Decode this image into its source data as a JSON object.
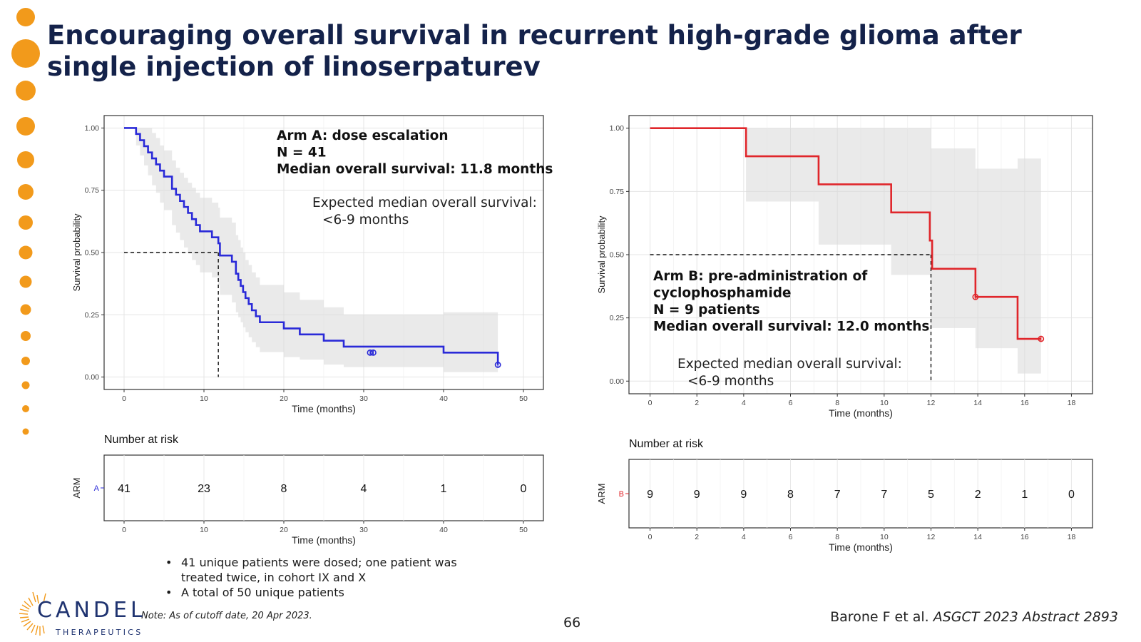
{
  "slide": {
    "title": "Encouraging overall survival in recurrent high-grade glioma after single injection of linoserpaturev",
    "page_number": "66",
    "citation_authors": "Barone F et al. ",
    "citation_source": "ASGCT 2023 Abstract 2893",
    "note": "Note: As of cutoff date, 20 Apr 2023.",
    "bullets": [
      "41 unique patients were dosed; one patient was treated twice, in cohort IX and X",
      "A total of 50 unique patients"
    ],
    "logo": {
      "name": "CANDEL",
      "subtitle": "THERAPEUTICS"
    },
    "colors": {
      "title": "#14224a",
      "dots": "#f29a1b",
      "logo": "#1f3370"
    }
  },
  "chart_data": [
    {
      "type": "line",
      "subtype": "kaplan-meier",
      "xlabel": "Time (months)",
      "ylabel": "Survival probability",
      "xlim": [
        -2.5,
        52.5
      ],
      "ylim": [
        -0.05,
        1.05
      ],
      "xticks": [
        0,
        10,
        20,
        30,
        40,
        50
      ],
      "yticks": [
        0,
        0.25,
        0.5,
        0.75,
        1
      ],
      "ytick_labels": [
        "0.00",
        "0.25",
        "0.50",
        "0.75",
        "1.00"
      ],
      "grid": true,
      "color": "#2a2ad8",
      "annotations": {
        "bold": [
          "Arm A: dose escalation",
          "N = 41",
          "Median overall survival: 11.8 months"
        ],
        "regular": [
          "Expected median overall survival:",
          "<6-9 months"
        ]
      },
      "median": {
        "x": 11.8,
        "y": 0.5
      },
      "series": [
        {
          "x": [
            0,
            1.5,
            2,
            2.5,
            3,
            3.5,
            4,
            4.5,
            5,
            6,
            6.5,
            7,
            7.5,
            8,
            8.5,
            9,
            9.5,
            11,
            11.8,
            12,
            13.5,
            14,
            14.3,
            14.6,
            14.9,
            15.2,
            15.6,
            16,
            16.5,
            17,
            20,
            22,
            25,
            27.5,
            40,
            46.8
          ],
          "y": [
            1,
            0.976,
            0.951,
            0.927,
            0.902,
            0.878,
            0.854,
            0.829,
            0.805,
            0.756,
            0.732,
            0.707,
            0.683,
            0.659,
            0.634,
            0.61,
            0.585,
            0.561,
            0.537,
            0.488,
            0.463,
            0.415,
            0.39,
            0.366,
            0.341,
            0.317,
            0.293,
            0.268,
            0.244,
            0.22,
            0.195,
            0.171,
            0.146,
            0.122,
            0.098,
            0.049
          ],
          "ci_x": [
            0,
            1.5,
            2,
            2.5,
            3,
            3.5,
            4,
            4.5,
            5,
            6,
            6.5,
            7,
            7.5,
            8,
            8.5,
            9,
            9.5,
            11,
            11.8,
            12,
            13.5,
            14,
            14.3,
            14.6,
            14.9,
            15.2,
            15.6,
            16,
            16.5,
            17,
            20,
            22,
            25,
            27.5,
            40,
            46.8
          ],
          "ci_lower": [
            1,
            0.93,
            0.89,
            0.85,
            0.81,
            0.77,
            0.74,
            0.7,
            0.67,
            0.61,
            0.58,
            0.55,
            0.52,
            0.5,
            0.47,
            0.45,
            0.42,
            0.4,
            0.37,
            0.33,
            0.3,
            0.26,
            0.24,
            0.22,
            0.2,
            0.18,
            0.16,
            0.14,
            0.12,
            0.1,
            0.08,
            0.07,
            0.05,
            0.04,
            0.02,
            0.02
          ],
          "ci_upper": [
            1,
            1,
            1,
            1,
            1,
            0.98,
            0.96,
            0.93,
            0.91,
            0.87,
            0.84,
            0.82,
            0.8,
            0.78,
            0.76,
            0.74,
            0.72,
            0.7,
            0.68,
            0.64,
            0.62,
            0.57,
            0.55,
            0.52,
            0.5,
            0.47,
            0.45,
            0.42,
            0.4,
            0.37,
            0.34,
            0.31,
            0.28,
            0.25,
            0.26,
            0.26
          ],
          "censored": [
            {
              "x": 30.8,
              "y": 0.098
            },
            {
              "x": 31.2,
              "y": 0.098
            },
            {
              "x": 46.8,
              "y": 0.049
            }
          ]
        }
      ],
      "risk_table": {
        "title": "Number at risk",
        "ylabel": "ARM",
        "arm_label": "A",
        "times": [
          0,
          10,
          20,
          30,
          40,
          50
        ],
        "counts": [
          "41",
          "23",
          "8",
          "4",
          "1",
          "0"
        ]
      }
    },
    {
      "type": "line",
      "subtype": "kaplan-meier",
      "xlabel": "Time (months)",
      "ylabel": "Survival probability",
      "xlim": [
        -0.9,
        18.9
      ],
      "ylim": [
        -0.05,
        1.05
      ],
      "xticks": [
        0,
        2,
        4,
        6,
        8,
        10,
        12,
        14,
        16,
        18
      ],
      "yticks": [
        0,
        0.25,
        0.5,
        0.75,
        1
      ],
      "ytick_labels": [
        "0.00",
        "0.25",
        "0.50",
        "0.75",
        "1.00"
      ],
      "grid": true,
      "color": "#e0262b",
      "annotations": {
        "bold": [
          "Arm B:  pre-administration of",
          "cyclophosphamide",
          "N = 9 patients",
          "Median overall survival: 12.0 months"
        ],
        "regular": [
          "Expected median overall survival:",
          "<6-9 months"
        ]
      },
      "median": {
        "x": 12.0,
        "y": 0.5
      },
      "series": [
        {
          "x": [
            0,
            4.1,
            7.2,
            10.3,
            11.95,
            12.05,
            13.9,
            15.7,
            16.7
          ],
          "y": [
            1,
            0.889,
            0.778,
            0.667,
            0.556,
            0.444,
            0.333,
            0.167,
            0.167
          ],
          "ci_x": [
            0,
            4.1,
            7.2,
            10.3,
            12.0,
            13.9,
            15.7,
            16.7
          ],
          "ci_lower": [
            1,
            0.71,
            0.54,
            0.42,
            0.21,
            0.13,
            0.03,
            0.03
          ],
          "ci_upper": [
            1,
            1,
            1,
            1,
            0.92,
            0.84,
            0.88,
            0.88
          ],
          "censored": [
            {
              "x": 13.9,
              "y": 0.333
            },
            {
              "x": 16.7,
              "y": 0.167
            }
          ]
        }
      ],
      "risk_table": {
        "title": "Number at risk",
        "ylabel": "ARM",
        "arm_label": "B",
        "times": [
          0,
          2,
          4,
          6,
          8,
          10,
          12,
          14,
          16,
          18
        ],
        "counts": [
          "9",
          "9",
          "9",
          "8",
          "7",
          "7",
          "5",
          "2",
          "1",
          "0"
        ]
      }
    }
  ]
}
